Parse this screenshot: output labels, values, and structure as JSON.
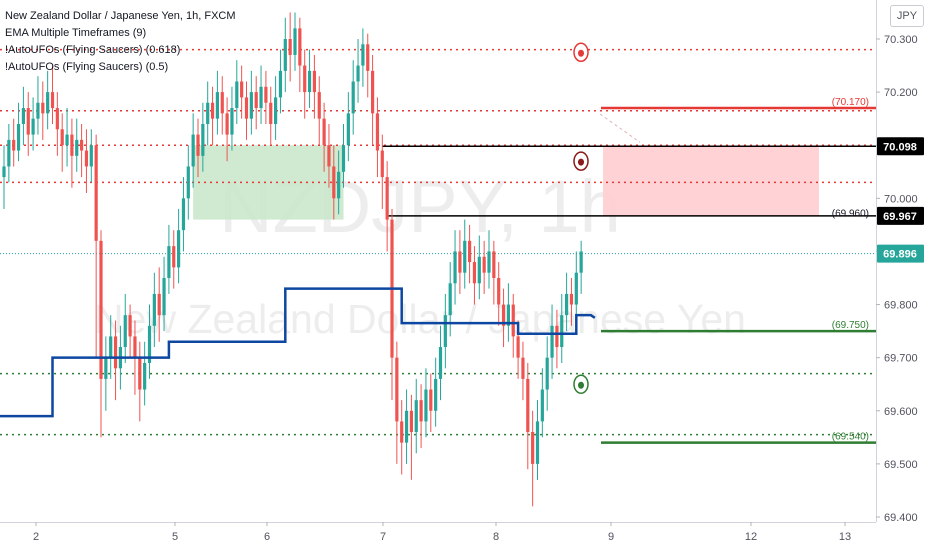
{
  "legend": [
    "New Zealand Dollar / Japanese Yen, 1h, FXCM",
    "EMA Multiple Timeframes (9)",
    "!AutoUFOs (Flying Saucers) (0.618)",
    "!AutoUFOs (Flying Saucers) (0.5)"
  ],
  "currency_button": "JPY",
  "watermark": {
    "symbol": "NZDJPY, 1h",
    "description": "New Zealand Dollar / Japanese Yen"
  },
  "colors": {
    "up": "#26a69a",
    "down": "#ef5350",
    "ema": "#0d47a1",
    "level_red": "#e53935",
    "level_green": "#2e7d32",
    "level_black": "#000000",
    "zone_green": "#c8e6c9",
    "zone_red": "#ffcdd2",
    "last_price": "#26a69a"
  },
  "chart_data": {
    "type": "candlestick",
    "symbol": "NZDJPY",
    "timeframe": "1h",
    "ylim": [
      69.39,
      70.36
    ],
    "y_ticks": [
      "70.300",
      "70.200",
      "70.100",
      "70.000",
      "69.900",
      "69.800",
      "69.700",
      "69.600",
      "69.500",
      "69.400"
    ],
    "x_ticks": [
      "2",
      "5",
      "6",
      "7",
      "8",
      "9",
      "12",
      "13"
    ],
    "price_labels": [
      {
        "text": "70.098",
        "value": 70.098,
        "style": "black"
      },
      {
        "text": "69.967",
        "value": 69.967,
        "style": "black"
      },
      {
        "text": "69.896",
        "value": 69.896,
        "style": "teal"
      }
    ],
    "level_labels": [
      {
        "text": "(70.170)",
        "value": 70.17,
        "color": "red"
      },
      {
        "text": "(69.960)",
        "value": 69.96,
        "color": "black"
      },
      {
        "text": "(69.750)",
        "value": 69.75,
        "color": "green"
      },
      {
        "text": "(69.540)",
        "value": 69.54,
        "color": "green"
      }
    ],
    "solid_levels": [
      {
        "value": 70.17,
        "color": "red"
      },
      {
        "value": 69.75,
        "color": "green"
      },
      {
        "value": 69.54,
        "color": "green"
      }
    ],
    "dotted_levels": [
      {
        "value": 70.28,
        "color": "red"
      },
      {
        "value": 70.165,
        "color": "red"
      },
      {
        "value": 70.1,
        "color": "red"
      },
      {
        "value": 70.03,
        "color": "red"
      },
      {
        "value": 69.67,
        "color": "green"
      },
      {
        "value": 69.555,
        "color": "green"
      }
    ],
    "black_levels": [
      {
        "value": 70.098,
        "from_bar": 78
      },
      {
        "value": 69.967,
        "from_bar": 79
      }
    ],
    "zones": [
      {
        "color": "green",
        "from_bar": 39,
        "to_bar": 70,
        "top": 70.1,
        "bottom": 69.96
      },
      {
        "color": "red",
        "top": 70.098,
        "bottom": 69.967
      }
    ],
    "ufo_markers": [
      {
        "color": "red",
        "value": 70.275
      },
      {
        "color": "darkred",
        "value": 70.07
      },
      {
        "color": "green",
        "value": 69.65
      }
    ],
    "ema": [
      {
        "from": 0,
        "to": 10,
        "value": 69.59
      },
      {
        "from": 10,
        "to": 34,
        "value": 69.7
      },
      {
        "from": 34,
        "to": 58,
        "value": 69.73
      },
      {
        "from": 58,
        "to": 82,
        "value": 69.83
      },
      {
        "from": 82,
        "to": 106,
        "value": 69.765
      },
      {
        "from": 106,
        "to": 118,
        "value": 69.745
      },
      {
        "from": 118,
        "to": 121,
        "value": 69.78
      }
    ],
    "candles": [
      [
        70.04,
        70.06,
        70.1,
        69.98
      ],
      [
        70.06,
        70.11,
        70.14,
        70.03
      ],
      [
        70.11,
        70.09,
        70.15,
        70.06
      ],
      [
        70.09,
        70.14,
        70.18,
        70.07
      ],
      [
        70.14,
        70.17,
        70.21,
        70.1
      ],
      [
        70.17,
        70.12,
        70.2,
        70.08
      ],
      [
        70.12,
        70.15,
        70.19,
        70.09
      ],
      [
        70.15,
        70.18,
        70.23,
        70.12
      ],
      [
        70.18,
        70.16,
        70.22,
        70.11
      ],
      [
        70.16,
        70.2,
        70.24,
        70.13
      ],
      [
        70.2,
        70.17,
        70.25,
        70.14
      ],
      [
        70.17,
        70.13,
        70.2,
        70.08
      ],
      [
        70.13,
        70.1,
        70.16,
        70.05
      ],
      [
        70.1,
        70.12,
        70.17,
        70.06
      ],
      [
        70.12,
        70.08,
        70.15,
        70.02
      ],
      [
        70.08,
        70.11,
        70.15,
        70.05
      ],
      [
        70.11,
        70.09,
        70.14,
        70.04
      ],
      [
        70.09,
        70.06,
        70.13,
        70.01
      ],
      [
        70.06,
        70.1,
        70.13,
        70.03
      ],
      [
        70.1,
        69.92,
        70.12,
        69.7
      ],
      [
        69.92,
        69.66,
        69.94,
        69.55
      ],
      [
        69.66,
        69.7,
        69.74,
        69.6
      ],
      [
        69.7,
        69.74,
        69.78,
        69.66
      ],
      [
        69.74,
        69.68,
        69.77,
        69.62
      ],
      [
        69.68,
        69.72,
        69.76,
        69.64
      ],
      [
        69.72,
        69.78,
        69.82,
        69.69
      ],
      [
        69.78,
        69.74,
        69.8,
        69.7
      ],
      [
        69.74,
        69.7,
        69.77,
        69.63
      ],
      [
        69.7,
        69.64,
        69.73,
        69.58
      ],
      [
        69.64,
        69.69,
        69.73,
        69.61
      ],
      [
        69.69,
        69.76,
        69.8,
        69.66
      ],
      [
        69.76,
        69.82,
        69.86,
        69.72
      ],
      [
        69.82,
        69.78,
        69.87,
        69.73
      ],
      [
        69.78,
        69.85,
        69.89,
        69.75
      ],
      [
        69.85,
        69.91,
        69.95,
        69.82
      ],
      [
        69.91,
        69.87,
        69.94,
        69.83
      ],
      [
        69.87,
        69.94,
        69.98,
        69.84
      ],
      [
        69.94,
        70.0,
        70.04,
        69.9
      ],
      [
        70.0,
        70.06,
        70.1,
        69.96
      ],
      [
        70.06,
        70.12,
        70.16,
        70.02
      ],
      [
        70.12,
        70.08,
        70.15,
        70.04
      ],
      [
        70.08,
        70.14,
        70.18,
        70.05
      ],
      [
        70.14,
        70.18,
        70.22,
        70.1
      ],
      [
        70.18,
        70.15,
        70.21,
        70.1
      ],
      [
        70.15,
        70.2,
        70.24,
        70.12
      ],
      [
        70.2,
        70.16,
        70.23,
        70.12
      ],
      [
        70.16,
        70.12,
        70.19,
        70.07
      ],
      [
        70.12,
        70.17,
        70.21,
        70.09
      ],
      [
        70.17,
        70.22,
        70.26,
        70.14
      ],
      [
        70.22,
        70.19,
        70.25,
        70.15
      ],
      [
        70.19,
        70.15,
        70.22,
        70.11
      ],
      [
        70.15,
        70.2,
        70.24,
        70.12
      ],
      [
        70.2,
        70.17,
        70.23,
        70.13
      ],
      [
        70.17,
        70.21,
        70.25,
        70.14
      ],
      [
        70.21,
        70.18,
        70.24,
        70.14
      ],
      [
        70.18,
        70.14,
        70.21,
        70.1
      ],
      [
        70.14,
        70.19,
        70.23,
        70.11
      ],
      [
        70.19,
        70.24,
        70.28,
        70.16
      ],
      [
        70.24,
        70.3,
        70.34,
        70.2
      ],
      [
        70.3,
        70.27,
        70.35,
        70.22
      ],
      [
        70.27,
        70.32,
        70.35,
        70.24
      ],
      [
        70.32,
        70.25,
        70.34,
        70.2
      ],
      [
        70.25,
        70.2,
        70.28,
        70.15
      ],
      [
        70.2,
        70.24,
        70.28,
        70.17
      ],
      [
        70.24,
        70.2,
        70.27,
        70.15
      ],
      [
        70.2,
        70.15,
        70.23,
        70.1
      ],
      [
        70.15,
        70.1,
        70.18,
        70.05
      ],
      [
        70.1,
        70.06,
        70.14,
        70.02
      ],
      [
        70.06,
        70.0,
        70.1,
        69.96
      ],
      [
        70.0,
        70.05,
        70.09,
        69.97
      ],
      [
        70.05,
        70.1,
        70.14,
        70.02
      ],
      [
        70.1,
        70.16,
        70.2,
        70.07
      ],
      [
        70.16,
        70.22,
        70.26,
        70.12
      ],
      [
        70.22,
        70.25,
        70.3,
        70.18
      ],
      [
        70.25,
        70.29,
        70.32,
        70.21
      ],
      [
        70.29,
        70.24,
        70.31,
        70.19
      ],
      [
        70.24,
        70.16,
        70.27,
        70.1
      ],
      [
        70.16,
        70.09,
        70.19,
        70.04
      ],
      [
        70.09,
        70.04,
        70.12,
        69.98
      ],
      [
        70.04,
        69.96,
        70.07,
        69.9
      ],
      [
        69.96,
        69.7,
        69.98,
        69.62
      ],
      [
        69.7,
        69.58,
        69.73,
        69.5
      ],
      [
        69.58,
        69.54,
        69.62,
        69.48
      ],
      [
        69.54,
        69.6,
        69.64,
        69.5
      ],
      [
        69.6,
        69.56,
        69.63,
        69.47
      ],
      [
        69.56,
        69.62,
        69.66,
        69.52
      ],
      [
        69.62,
        69.58,
        69.65,
        69.53
      ],
      [
        69.58,
        69.64,
        69.68,
        69.55
      ],
      [
        69.64,
        69.6,
        69.67,
        69.56
      ],
      [
        69.6,
        69.66,
        69.7,
        69.57
      ],
      [
        69.66,
        69.72,
        69.76,
        69.62
      ],
      [
        69.72,
        69.78,
        69.82,
        69.68
      ],
      [
        69.78,
        69.84,
        69.88,
        69.74
      ],
      [
        69.84,
        69.9,
        69.94,
        69.8
      ],
      [
        69.9,
        69.86,
        69.94,
        69.82
      ],
      [
        69.86,
        69.92,
        69.96,
        69.83
      ],
      [
        69.92,
        69.88,
        69.95,
        69.84
      ],
      [
        69.88,
        69.84,
        69.91,
        69.8
      ],
      [
        69.84,
        69.89,
        69.93,
        69.81
      ],
      [
        69.89,
        69.86,
        69.92,
        69.82
      ],
      [
        69.86,
        69.9,
        69.94,
        69.83
      ],
      [
        69.9,
        69.85,
        69.92,
        69.8
      ],
      [
        69.85,
        69.8,
        69.88,
        69.76
      ],
      [
        69.8,
        69.76,
        69.83,
        69.72
      ],
      [
        69.76,
        69.8,
        69.84,
        69.73
      ],
      [
        69.8,
        69.74,
        69.82,
        69.7
      ],
      [
        69.74,
        69.7,
        69.77,
        69.66
      ],
      [
        69.7,
        69.66,
        69.73,
        69.62
      ],
      [
        69.66,
        69.56,
        69.69,
        69.49
      ],
      [
        69.56,
        69.5,
        69.6,
        69.42
      ],
      [
        69.5,
        69.58,
        69.62,
        69.47
      ],
      [
        69.58,
        69.64,
        69.68,
        69.55
      ],
      [
        69.64,
        69.7,
        69.74,
        69.6
      ],
      [
        69.7,
        69.76,
        69.8,
        69.66
      ],
      [
        69.76,
        69.72,
        69.79,
        69.68
      ],
      [
        69.72,
        69.78,
        69.82,
        69.69
      ],
      [
        69.78,
        69.82,
        69.86,
        69.75
      ],
      [
        69.82,
        69.8,
        69.85,
        69.76
      ],
      [
        69.8,
        69.86,
        69.9,
        69.77
      ],
      [
        69.86,
        69.9,
        69.92,
        69.82
      ]
    ]
  }
}
